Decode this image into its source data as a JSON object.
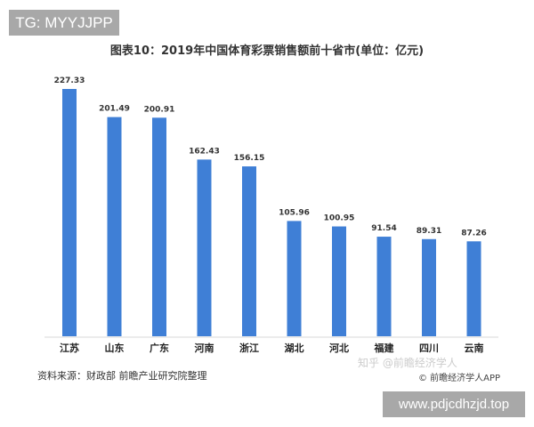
{
  "badge_top": "TG: MYYJJPP",
  "badge_bottom": "www.pdjcdhzjd.top",
  "source": "资料来源：财政部 前瞻产业研究院整理",
  "watermark_zhihu": "知乎 @前瞻经济学人",
  "watermark_app": "© 前瞻经济学人APP",
  "colors": {
    "bar": "#3f7fd6"
  },
  "chart_data": {
    "type": "bar",
    "title": "图表10：2019年中国体育彩票销售额前十省市(单位：亿元)",
    "categories": [
      "江苏",
      "山东",
      "广东",
      "河南",
      "浙江",
      "湖北",
      "河北",
      "福建",
      "四川",
      "云南"
    ],
    "values": [
      227.33,
      201.49,
      200.91,
      162.43,
      156.15,
      105.96,
      100.95,
      91.54,
      89.31,
      87.26
    ],
    "value_labels": [
      "227.33",
      "201.49",
      "200.91",
      "162.43",
      "156.15",
      "105.96",
      "100.95",
      "91.54",
      "89.31",
      "87.26"
    ],
    "xlabel": "",
    "ylabel": "",
    "ylim": [
      0,
      227.33
    ],
    "grid": false
  }
}
